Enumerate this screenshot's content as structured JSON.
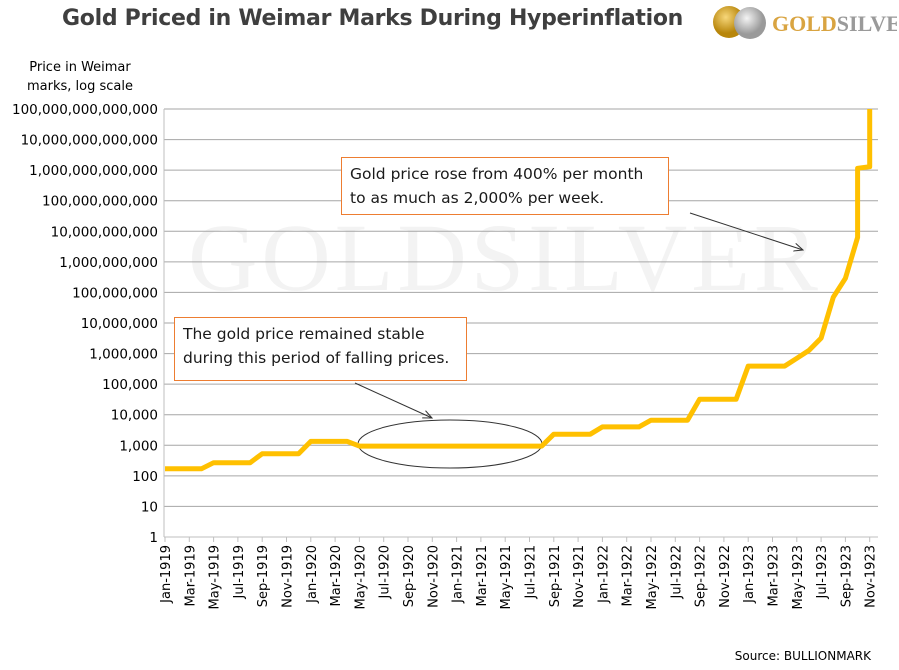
{
  "title": "Gold Priced in Weimar Marks During Hyperinflation",
  "logo": {
    "text": "GOLDSILVER",
    "gold_part": "GOLD",
    "silver_part": "SILVER"
  },
  "watermark": "GOLDSILVER",
  "source": "Source: BULLIONMARK",
  "annotations": [
    {
      "line1": "Gold price rose from 400% per month",
      "line2": "to as much as 2,000% per week."
    },
    {
      "line1": "The gold price remained stable",
      "line2": "during this period of falling prices."
    }
  ],
  "chart_data": {
    "type": "line",
    "title": "Gold Priced in Weimar Marks During Hyperinflation",
    "ylabel": "Price in Weimar marks, log scale",
    "xlabel": "",
    "yscale": "log",
    "ylim": [
      1,
      100000000000000
    ],
    "grid": true,
    "line_color": "#FFC000",
    "y_ticks": [
      "1",
      "10",
      "100",
      "1,000",
      "10,000",
      "100,000",
      "1,000,000",
      "10,000,000",
      "100,000,000",
      "1,000,000,000",
      "10,000,000,000",
      "100,000,000,000",
      "1,000,000,000,000",
      "10,000,000,000,000",
      "100,000,000,000,000"
    ],
    "months": [
      "Jan-1919",
      "Feb-1919",
      "Mar-1919",
      "Apr-1919",
      "May-1919",
      "Jun-1919",
      "Jul-1919",
      "Aug-1919",
      "Sep-1919",
      "Oct-1919",
      "Nov-1919",
      "Dec-1919",
      "Jan-1920",
      "Feb-1920",
      "Mar-1920",
      "Apr-1920",
      "May-1920",
      "Jun-1920",
      "Jul-1920",
      "Aug-1920",
      "Sep-1920",
      "Oct-1920",
      "Nov-1920",
      "Dec-1920",
      "Jan-1921",
      "Feb-1921",
      "Mar-1921",
      "Apr-1921",
      "May-1921",
      "Jun-1921",
      "Jul-1921",
      "Aug-1921",
      "Sep-1921",
      "Oct-1921",
      "Nov-1921",
      "Dec-1921",
      "Jan-1922",
      "Feb-1922",
      "Mar-1922",
      "Apr-1922",
      "May-1922",
      "Jun-1922",
      "Jul-1922",
      "Aug-1922",
      "Sep-1922",
      "Oct-1922",
      "Nov-1922",
      "Dec-1922",
      "Jan-1923",
      "Feb-1923",
      "Mar-1923",
      "Apr-1923",
      "May-1923",
      "Jun-1923",
      "Jul-1923",
      "Aug-1923",
      "Sep-1923",
      "Oct-1923",
      "Nov-1923"
    ],
    "x_tick_labels": [
      "Jan-1919",
      "Mar-1919",
      "May-1919",
      "Jul-1919",
      "Sep-1919",
      "Nov-1919",
      "Jan-1920",
      "Mar-1920",
      "May-1920",
      "Jul-1920",
      "Sep-1920",
      "Nov-1920",
      "Jan-1921",
      "Mar-1921",
      "May-1921",
      "Jul-1921",
      "Sep-1921",
      "Nov-1921",
      "Jan-1922",
      "Mar-1922",
      "May-1922",
      "Jul-1922",
      "Sep-1922",
      "Nov-1922",
      "Jan-1923",
      "Mar-1923",
      "May-1923",
      "Jul-1923",
      "Sep-1923",
      "Nov-1923"
    ],
    "series": [
      {
        "points": [
          [
            "Jan-1919",
            170
          ],
          [
            "Apr-1919",
            170
          ],
          [
            "May-1919",
            270
          ],
          [
            "Aug-1919",
            270
          ],
          [
            "Sep-1919",
            530
          ],
          [
            "Dec-1919",
            530
          ],
          [
            "Jan-1920",
            1340
          ],
          [
            "Apr-1920",
            1340
          ],
          [
            "May-1920",
            940
          ],
          [
            "Aug-1921",
            940
          ],
          [
            "Sep-1921",
            2300
          ],
          [
            "Dec-1921",
            2300
          ],
          [
            "Jan-1922",
            4000
          ],
          [
            "Apr-1922",
            4000
          ],
          [
            "May-1922",
            6600
          ],
          [
            "Aug-1922",
            6600
          ],
          [
            "Sep-1922",
            32000
          ],
          [
            "Dec-1922",
            32000
          ],
          [
            "Jan-1923",
            390000
          ],
          [
            "Apr-1923",
            390000
          ],
          [
            "May-1923",
            700000
          ],
          [
            "Jun-1923",
            1270000
          ],
          [
            "Jul-1923",
            3200000
          ],
          [
            "Aug-1923",
            70000000
          ],
          [
            "Sep-1923",
            290000000
          ],
          [
            "Oct-1923",
            6300000000
          ],
          [
            "Oct-1923",
            1150000000000
          ],
          [
            "Nov-1923",
            1300000000000
          ],
          [
            "Nov-1923",
            100000000000000
          ]
        ]
      }
    ]
  }
}
